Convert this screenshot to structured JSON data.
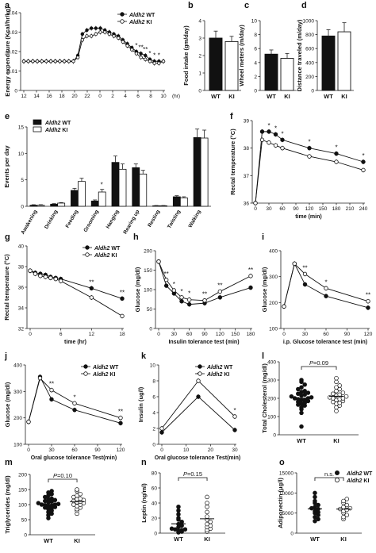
{
  "chart_data": [
    {
      "panel": "a",
      "type": "line",
      "ylabel": "Energy expenditure (Kcal/hr/kg)",
      "xunit": "(hr)",
      "x_tick_labels": [
        "12",
        "14",
        "16",
        "18",
        "20",
        "22",
        "0",
        "2",
        "4",
        "6",
        "8",
        "10"
      ],
      "ylim": [
        0,
        0.04
      ],
      "y_ticks": [
        0,
        0.01,
        0.02,
        0.03,
        0.04
      ],
      "legend": [
        "Aldh2 WT",
        "Aldh2 KI"
      ],
      "legend_position": "top-right",
      "series": [
        {
          "name": "Aldh2 WT",
          "filled": true,
          "values": [
            0.015,
            0.015,
            0.015,
            0.015,
            0.015,
            0.015,
            0.015,
            0.015,
            0.015,
            0.015,
            0.015,
            0.015,
            0.018,
            0.029,
            0.031,
            0.032,
            0.032,
            0.032,
            0.031,
            0.03,
            0.029,
            0.028,
            0.026,
            0.024,
            0.022,
            0.02,
            0.019,
            0.018,
            0.016,
            0.015,
            0.015,
            0.015
          ]
        },
        {
          "name": "Aldh2 KI",
          "filled": false,
          "values": [
            0.015,
            0.015,
            0.015,
            0.015,
            0.015,
            0.015,
            0.015,
            0.015,
            0.015,
            0.015,
            0.015,
            0.015,
            0.017,
            0.026,
            0.028,
            0.028,
            0.029,
            0.03,
            0.03,
            0.029,
            0.028,
            0.027,
            0.025,
            0.023,
            0.021,
            0.019,
            0.017,
            0.016,
            0.015,
            0.014,
            0.014,
            0.015
          ]
        }
      ],
      "significance": [
        "*",
        "**",
        "**",
        "*",
        "*",
        "*"
      ]
    },
    {
      "panel": "b",
      "type": "bar",
      "ylabel": "Food intake (gm/day)",
      "categories": [
        "WT",
        "KI"
      ],
      "values": [
        3.0,
        2.8
      ],
      "errors": [
        0.4,
        0.3
      ],
      "ylim": [
        0,
        4
      ],
      "y_ticks": [
        0,
        1,
        2,
        3,
        4
      ]
    },
    {
      "panel": "c",
      "type": "bar",
      "ylabel": "Wheel meters (m/day)",
      "categories": [
        "WT",
        "KI"
      ],
      "values": [
        5.2,
        4.6
      ],
      "errors": [
        0.6,
        0.7
      ],
      "ylim": [
        0,
        10
      ],
      "y_ticks": [
        0,
        2,
        4,
        6,
        8,
        10
      ]
    },
    {
      "panel": "d",
      "type": "bar",
      "ylabel": "Distance traveled (m/day)",
      "categories": [
        "WT",
        "KI"
      ],
      "values": [
        780,
        840
      ],
      "errors": [
        90,
        130
      ],
      "ylim": [
        0,
        1000
      ],
      "y_ticks": [
        0,
        200,
        400,
        600,
        800,
        1000
      ]
    },
    {
      "panel": "e",
      "type": "bar",
      "ylabel": "Events per day",
      "categories": [
        "Awakening",
        "Drinking",
        "Feeding",
        "Grooming",
        "Hanging",
        "Rearing up",
        "Resting",
        "Twisting",
        "Walking"
      ],
      "ylim": [
        0,
        15
      ],
      "y_ticks": [
        0,
        5,
        10,
        15
      ],
      "legend": [
        "Aldh2 WT",
        "Aldh2 KI"
      ],
      "series": [
        {
          "name": "Aldh2 WT",
          "values": [
            0.2,
            0.4,
            3.0,
            1.0,
            8.3,
            7.3,
            0.1,
            1.8,
            13.0
          ],
          "errors": [
            0.1,
            0.1,
            0.4,
            0.2,
            1.2,
            0.7,
            0.05,
            0.2,
            1.6
          ]
        },
        {
          "name": "Aldh2 KI",
          "values": [
            0.2,
            0.6,
            4.7,
            2.7,
            7.0,
            6.1,
            0.1,
            1.6,
            12.9
          ],
          "errors": [
            0.1,
            0.1,
            0.6,
            0.5,
            1.0,
            0.7,
            0.05,
            0.2,
            1.5
          ]
        }
      ],
      "significance": [
        "*"
      ]
    },
    {
      "panel": "f",
      "type": "line",
      "ylabel": "Rectal temperature (°C)",
      "xlabel": "time (min)",
      "x": [
        0,
        15,
        30,
        45,
        60,
        120,
        180,
        240
      ],
      "xlim": [
        0,
        240
      ],
      "x_ticks": [
        0,
        30,
        60,
        90,
        120,
        150,
        180,
        210,
        240
      ],
      "ylim": [
        36,
        39
      ],
      "y_ticks": [
        36,
        37,
        38,
        39
      ],
      "series": [
        {
          "name": "Aldh2 WT",
          "values": [
            36.0,
            38.6,
            38.6,
            38.5,
            38.3,
            38.0,
            37.8,
            37.5
          ]
        },
        {
          "name": "Aldh2 KI",
          "values": [
            36.0,
            38.3,
            38.2,
            38.1,
            38.0,
            37.7,
            37.5,
            37.2
          ]
        }
      ],
      "significance": [
        "*",
        "*",
        "*",
        "*",
        "*",
        "*"
      ]
    },
    {
      "panel": "g",
      "type": "line",
      "ylabel": "Rectal temperature (°C)",
      "xlabel": "time (hr)",
      "x": [
        0,
        1,
        2,
        3,
        4,
        5,
        6,
        12,
        18
      ],
      "xlim": [
        0,
        18
      ],
      "x_ticks": [
        0,
        6,
        12,
        18
      ],
      "ylim": [
        32,
        40
      ],
      "y_ticks": [
        32,
        34,
        36,
        38,
        40
      ],
      "legend": [
        "Aldh2 WT",
        "Aldh2 KI"
      ],
      "series": [
        {
          "name": "Aldh2 WT",
          "values": [
            37.6,
            37.4,
            37.3,
            37.2,
            37.0,
            36.9,
            36.8,
            35.9,
            34.9
          ]
        },
        {
          "name": "Aldh2 KI",
          "values": [
            37.6,
            37.3,
            37.1,
            37.0,
            36.9,
            36.8,
            36.6,
            35.0,
            33.2
          ]
        }
      ],
      "significance": [
        "**",
        "**"
      ]
    },
    {
      "panel": "h",
      "type": "line",
      "ylabel": "Glucose (mg/dl)",
      "xlabel": "Insulin  tolerance  test (min)",
      "x": [
        0,
        15,
        30,
        45,
        60,
        90,
        120,
        180
      ],
      "xlim": [
        0,
        180
      ],
      "x_ticks": [
        0,
        30,
        60,
        90,
        120,
        150,
        180
      ],
      "ylim": [
        0,
        200
      ],
      "y_ticks": [
        0,
        50,
        100,
        150,
        200
      ],
      "series": [
        {
          "name": "Aldh2 WT",
          "values": [
            172,
            110,
            90,
            70,
            62,
            65,
            80,
            105
          ]
        },
        {
          "name": "Aldh2 KI",
          "values": [
            172,
            125,
            98,
            80,
            74,
            72,
            95,
            135
          ]
        }
      ],
      "significance": [
        "**",
        "*",
        "*",
        "*",
        "**",
        "**",
        "**"
      ]
    },
    {
      "panel": "i",
      "type": "line",
      "ylabel": "Glucose (mg/dl)",
      "xlabel": "i.p. Glucose  tolerance  test (min)",
      "x": [
        0,
        15,
        30,
        60,
        120
      ],
      "xlim": [
        0,
        120
      ],
      "x_ticks": [
        0,
        30,
        60,
        90,
        120
      ],
      "ylim": [
        100,
        400
      ],
      "y_ticks": [
        100,
        200,
        300,
        400
      ],
      "series": [
        {
          "name": "Aldh2 WT",
          "values": [
            185,
            350,
            270,
            225,
            180
          ]
        },
        {
          "name": "Aldh2 KI",
          "values": [
            185,
            350,
            310,
            255,
            205
          ]
        }
      ],
      "significance": [
        "**",
        "*",
        "**"
      ]
    },
    {
      "panel": "j",
      "type": "line",
      "ylabel": "Glucose (mg/dl)",
      "xlabel": "Oral glucose tolerance Test(min)",
      "x": [
        0,
        15,
        30,
        60,
        120
      ],
      "xlim": [
        0,
        120
      ],
      "x_ticks": [
        0,
        30,
        60,
        90,
        120
      ],
      "ylim": [
        100,
        400
      ],
      "y_ticks": [
        100,
        200,
        300,
        400
      ],
      "legend": [
        "Aldh2 WT",
        "Aldh2 KI"
      ],
      "series": [
        {
          "name": "Aldh2 WT",
          "values": [
            185,
            355,
            270,
            230,
            180
          ]
        },
        {
          "name": "Aldh2 KI",
          "values": [
            185,
            350,
            305,
            255,
            200
          ]
        }
      ],
      "significance": [
        "**",
        "*",
        "**"
      ]
    },
    {
      "panel": "k",
      "type": "line",
      "ylabel": "Insulin (ug/l)",
      "xlabel": "Oral glucose tolerance Test(min)",
      "x": [
        0,
        15,
        30
      ],
      "xlim": [
        0,
        30
      ],
      "x_ticks": [
        0,
        10,
        20,
        30
      ],
      "ylim": [
        0,
        10
      ],
      "y_ticks": [
        0,
        2,
        4,
        6,
        8,
        10
      ],
      "legend": [
        "Aldh2 WT",
        "Aldh2 KI"
      ],
      "series": [
        {
          "name": "Aldh2 WT",
          "values": [
            1.5,
            6.0,
            1.8
          ]
        },
        {
          "name": "Aldh2 KI",
          "values": [
            2.0,
            8.0,
            3.5
          ]
        }
      ],
      "significance": [
        "*",
        "*"
      ]
    },
    {
      "panel": "l",
      "type": "scatter",
      "ylabel": "Total Cholesterol (mg/dl)",
      "categories": [
        "WT",
        "KI"
      ],
      "ylim": [
        0,
        400
      ],
      "y_ticks": [
        0,
        100,
        200,
        300,
        400
      ],
      "p_label": "P=0.09",
      "groups": [
        {
          "name": "WT",
          "filled": true,
          "values": [
            45,
            120,
            140,
            150,
            160,
            165,
            170,
            175,
            180,
            185,
            190,
            190,
            195,
            200,
            200,
            205,
            210,
            215,
            220,
            225,
            230,
            235,
            240,
            250,
            260,
            275,
            290,
            300
          ]
        },
        {
          "name": "KI",
          "filled": false,
          "values": [
            130,
            150,
            160,
            170,
            175,
            180,
            185,
            190,
            195,
            200,
            200,
            205,
            210,
            215,
            220,
            225,
            230,
            240,
            250,
            260,
            270,
            290,
            310
          ]
        }
      ]
    },
    {
      "panel": "m",
      "type": "scatter",
      "ylabel": "Triglycerides (mg/dl)",
      "categories": [
        "WT",
        "KI"
      ],
      "ylim": [
        0,
        200
      ],
      "y_ticks": [
        0,
        50,
        100,
        150,
        200
      ],
      "p_label": "P=0.10",
      "groups": [
        {
          "name": "WT",
          "filled": true,
          "values": [
            55,
            65,
            70,
            75,
            80,
            85,
            88,
            90,
            92,
            95,
            95,
            98,
            100,
            100,
            102,
            105,
            108,
            110,
            112,
            115,
            118,
            120,
            125,
            130,
            135,
            140,
            145
          ]
        },
        {
          "name": "KI",
          "filled": false,
          "values": [
            70,
            80,
            85,
            90,
            95,
            100,
            100,
            105,
            108,
            110,
            112,
            115,
            118,
            120,
            125,
            130,
            135,
            145,
            150
          ]
        }
      ]
    },
    {
      "panel": "n",
      "type": "scatter",
      "ylabel": "Leptin (ng/ml)",
      "categories": [
        "WT",
        "KI"
      ],
      "ylim": [
        0,
        80
      ],
      "y_ticks": [
        0,
        20,
        40,
        60,
        80
      ],
      "p_label": "P=0.15",
      "groups": [
        {
          "name": "WT",
          "filled": true,
          "values": [
            1,
            2,
            3,
            4,
            5,
            5,
            6,
            8,
            10,
            12,
            15,
            18,
            20,
            25,
            30,
            35
          ]
        },
        {
          "name": "KI",
          "filled": false,
          "values": [
            2,
            4,
            6,
            8,
            10,
            12,
            15,
            18,
            22,
            28,
            35,
            40,
            48
          ]
        }
      ]
    },
    {
      "panel": "o",
      "type": "scatter",
      "ylabel": "Adiponectin (μg/l)",
      "categories": [
        "WT",
        "KI"
      ],
      "ylim": [
        0,
        15000
      ],
      "y_ticks": [
        0,
        5000,
        10000,
        15000
      ],
      "p_label": "n.s.",
      "legend": [
        "Aldh2 WT",
        "Aldh2 KI"
      ],
      "legend_position": "top-right",
      "groups": [
        {
          "name": "WT",
          "filled": true,
          "values": [
            3000,
            3500,
            4000,
            4500,
            5000,
            5200,
            5500,
            6000,
            6200,
            6500,
            7000,
            7500,
            8000,
            9000,
            10000
          ]
        },
        {
          "name": "KI",
          "filled": false,
          "values": [
            3500,
            4000,
            4500,
            5000,
            5500,
            5800,
            6000,
            6200,
            6500,
            7000,
            7500,
            8000,
            8500
          ]
        }
      ]
    }
  ]
}
